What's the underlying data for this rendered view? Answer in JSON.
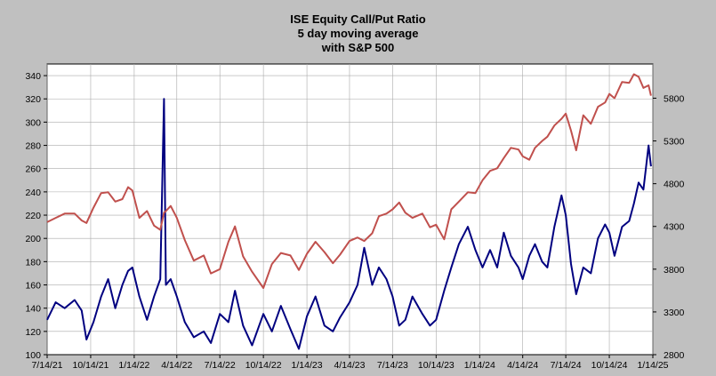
{
  "chart_data": {
    "type": "line",
    "title_lines": [
      "ISE  Equity Call/Put Ratio",
      "5 day moving average",
      "with S&P 500"
    ],
    "x_ticks": [
      "7/14/21",
      "10/14/21",
      "1/14/22",
      "4/14/22",
      "7/14/22",
      "10/14/22",
      "1/14/23",
      "4/14/23",
      "7/14/23",
      "10/14/23",
      "1/14/24",
      "4/14/24",
      "7/14/24",
      "10/14/24",
      "1/14/25"
    ],
    "x_range": [
      "7/14/21",
      "1/14/25"
    ],
    "ylim_left": [
      100,
      350
    ],
    "y_ticks_left": [
      100,
      120,
      140,
      160,
      180,
      200,
      220,
      240,
      260,
      280,
      300,
      320,
      340
    ],
    "ylim_right": [
      2800,
      6200
    ],
    "y_ticks_right": [
      2800,
      3300,
      3800,
      4300,
      4800,
      5300,
      5800
    ],
    "grid": true,
    "series": [
      {
        "axis": "left",
        "color": "#000080",
        "points": [
          [
            "7/14/21",
            130
          ],
          [
            "8/1/21",
            145
          ],
          [
            "8/20/21",
            140
          ],
          [
            "9/10/21",
            147
          ],
          [
            "9/25/21",
            138
          ],
          [
            "10/5/21",
            113
          ],
          [
            "10/20/21",
            128
          ],
          [
            "11/5/21",
            150
          ],
          [
            "11/20/21",
            165
          ],
          [
            "12/5/21",
            140
          ],
          [
            "12/20/21",
            160
          ],
          [
            "1/1/22",
            172
          ],
          [
            "1/10/22",
            175
          ],
          [
            "1/25/22",
            150
          ],
          [
            "2/10/22",
            130
          ],
          [
            "2/25/22",
            150
          ],
          [
            "3/10/22",
            165
          ],
          [
            "3/18/22",
            320
          ],
          [
            "3/22/22",
            160
          ],
          [
            "4/1/22",
            165
          ],
          [
            "4/14/22",
            150
          ],
          [
            "5/1/22",
            128
          ],
          [
            "5/20/22",
            115
          ],
          [
            "6/10/22",
            120
          ],
          [
            "6/25/22",
            110
          ],
          [
            "7/14/22",
            135
          ],
          [
            "8/1/22",
            128
          ],
          [
            "8/15/22",
            155
          ],
          [
            "9/1/22",
            125
          ],
          [
            "9/20/22",
            108
          ],
          [
            "10/14/22",
            135
          ],
          [
            "11/1/22",
            120
          ],
          [
            "11/20/22",
            142
          ],
          [
            "12/10/22",
            122
          ],
          [
            "12/28/22",
            105
          ],
          [
            "1/14/23",
            133
          ],
          [
            "2/1/23",
            150
          ],
          [
            "2/20/23",
            125
          ],
          [
            "3/10/23",
            120
          ],
          [
            "3/25/23",
            132
          ],
          [
            "4/14/23",
            145
          ],
          [
            "5/1/23",
            160
          ],
          [
            "5/15/23",
            192
          ],
          [
            "6/1/23",
            160
          ],
          [
            "6/15/23",
            175
          ],
          [
            "7/1/23",
            165
          ],
          [
            "7/14/23",
            150
          ],
          [
            "7/28/23",
            125
          ],
          [
            "8/10/23",
            130
          ],
          [
            "8/25/23",
            150
          ],
          [
            "9/15/23",
            135
          ],
          [
            "10/1/23",
            125
          ],
          [
            "10/14/23",
            130
          ],
          [
            "10/31/23",
            155
          ],
          [
            "11/15/23",
            175
          ],
          [
            "12/1/23",
            195
          ],
          [
            "12/20/23",
            210
          ],
          [
            "1/5/24",
            190
          ],
          [
            "1/20/24",
            175
          ],
          [
            "2/5/24",
            190
          ],
          [
            "2/20/24",
            175
          ],
          [
            "3/5/24",
            205
          ],
          [
            "3/20/24",
            185
          ],
          [
            "4/5/24",
            175
          ],
          [
            "4/14/24",
            165
          ],
          [
            "4/28/24",
            185
          ],
          [
            "5/10/24",
            195
          ],
          [
            "5/25/24",
            180
          ],
          [
            "6/5/24",
            175
          ],
          [
            "6/20/24",
            210
          ],
          [
            "7/5/24",
            237
          ],
          [
            "7/14/24",
            220
          ],
          [
            "7/25/24",
            178
          ],
          [
            "8/5/24",
            152
          ],
          [
            "8/20/24",
            175
          ],
          [
            "9/5/24",
            170
          ],
          [
            "9/20/24",
            200
          ],
          [
            "10/5/24",
            212
          ],
          [
            "10/14/24",
            205
          ],
          [
            "10/25/24",
            185
          ],
          [
            "11/10/24",
            210
          ],
          [
            "11/25/24",
            215
          ],
          [
            "12/5/24",
            230
          ],
          [
            "12/15/24",
            248
          ],
          [
            "12/25/24",
            242
          ],
          [
            "1/5/25",
            280
          ],
          [
            "1/10/25",
            262
          ]
        ]
      },
      {
        "axis": "right",
        "color": "#c0504d",
        "points": [
          [
            "7/14/21",
            4350
          ],
          [
            "8/1/21",
            4400
          ],
          [
            "8/20/21",
            4450
          ],
          [
            "9/10/21",
            4450
          ],
          [
            "9/25/21",
            4370
          ],
          [
            "10/5/21",
            4340
          ],
          [
            "10/20/21",
            4520
          ],
          [
            "11/5/21",
            4690
          ],
          [
            "11/20/21",
            4700
          ],
          [
            "12/5/21",
            4590
          ],
          [
            "12/20/21",
            4620
          ],
          [
            "1/1/22",
            4760
          ],
          [
            "1/10/22",
            4720
          ],
          [
            "1/25/22",
            4400
          ],
          [
            "2/10/22",
            4480
          ],
          [
            "2/25/22",
            4310
          ],
          [
            "3/10/22",
            4260
          ],
          [
            "3/18/22",
            4460
          ],
          [
            "3/22/22",
            4480
          ],
          [
            "4/1/22",
            4540
          ],
          [
            "4/14/22",
            4400
          ],
          [
            "5/1/22",
            4140
          ],
          [
            "5/20/22",
            3900
          ],
          [
            "6/10/22",
            3960
          ],
          [
            "6/25/22",
            3750
          ],
          [
            "7/14/22",
            3800
          ],
          [
            "8/1/22",
            4120
          ],
          [
            "8/15/22",
            4300
          ],
          [
            "9/1/22",
            3950
          ],
          [
            "9/20/22",
            3770
          ],
          [
            "10/14/22",
            3580
          ],
          [
            "11/1/22",
            3860
          ],
          [
            "11/20/22",
            3990
          ],
          [
            "12/10/22",
            3960
          ],
          [
            "12/28/22",
            3790
          ],
          [
            "1/14/23",
            3980
          ],
          [
            "2/1/23",
            4120
          ],
          [
            "2/20/23",
            4000
          ],
          [
            "3/10/23",
            3870
          ],
          [
            "3/25/23",
            3970
          ],
          [
            "4/14/23",
            4130
          ],
          [
            "5/1/23",
            4170
          ],
          [
            "5/15/23",
            4130
          ],
          [
            "6/1/23",
            4220
          ],
          [
            "6/15/23",
            4420
          ],
          [
            "7/1/23",
            4450
          ],
          [
            "7/14/23",
            4500
          ],
          [
            "7/28/23",
            4580
          ],
          [
            "8/10/23",
            4460
          ],
          [
            "8/25/23",
            4400
          ],
          [
            "9/15/23",
            4450
          ],
          [
            "10/1/23",
            4290
          ],
          [
            "10/14/23",
            4320
          ],
          [
            "10/31/23",
            4150
          ],
          [
            "11/15/23",
            4500
          ],
          [
            "12/1/23",
            4590
          ],
          [
            "12/20/23",
            4700
          ],
          [
            "1/5/24",
            4690
          ],
          [
            "1/20/24",
            4840
          ],
          [
            "2/5/24",
            4950
          ],
          [
            "2/20/24",
            4980
          ],
          [
            "3/5/24",
            5100
          ],
          [
            "3/20/24",
            5220
          ],
          [
            "4/5/24",
            5200
          ],
          [
            "4/14/24",
            5120
          ],
          [
            "4/28/24",
            5080
          ],
          [
            "5/10/24",
            5220
          ],
          [
            "5/25/24",
            5300
          ],
          [
            "6/5/24",
            5350
          ],
          [
            "6/20/24",
            5480
          ],
          [
            "7/5/24",
            5560
          ],
          [
            "7/14/24",
            5620
          ],
          [
            "7/25/24",
            5420
          ],
          [
            "8/5/24",
            5190
          ],
          [
            "8/20/24",
            5600
          ],
          [
            "9/5/24",
            5500
          ],
          [
            "9/20/24",
            5700
          ],
          [
            "10/5/24",
            5750
          ],
          [
            "10/14/24",
            5850
          ],
          [
            "10/25/24",
            5800
          ],
          [
            "11/10/24",
            5990
          ],
          [
            "11/25/24",
            5980
          ],
          [
            "12/5/24",
            6080
          ],
          [
            "12/15/24",
            6050
          ],
          [
            "12/25/24",
            5920
          ],
          [
            "1/5/25",
            5950
          ],
          [
            "1/10/25",
            5830
          ]
        ]
      }
    ]
  }
}
